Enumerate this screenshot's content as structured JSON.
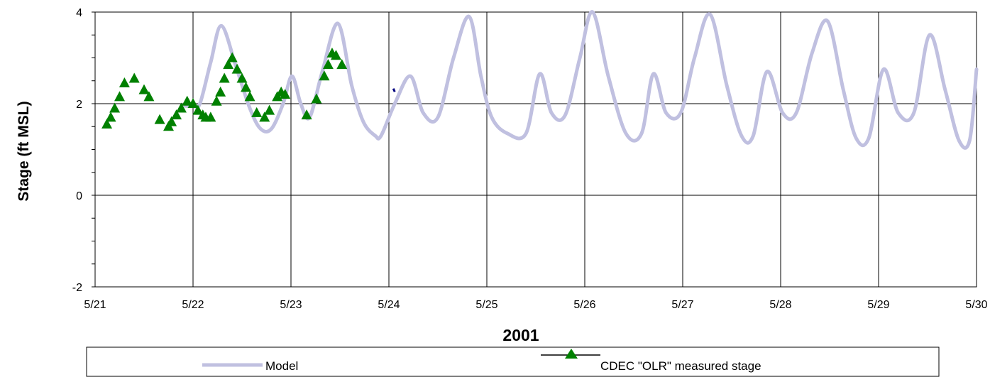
{
  "chart_data": {
    "type": "line",
    "xlabel": "2001",
    "ylabel": "Stage (ft MSL)",
    "xlim": [
      0,
      9
    ],
    "ylim": [
      -2,
      4
    ],
    "x_tick_labels": [
      "5/21",
      "5/22",
      "5/23",
      "5/24",
      "5/25",
      "5/26",
      "5/27",
      "5/28",
      "5/29",
      "5/30"
    ],
    "y_tick_labels": [
      "-2",
      "0",
      "2",
      "4"
    ],
    "y_tick_values": [
      -2,
      0,
      2,
      4
    ],
    "grid": true,
    "legend_placement": "bottom",
    "colors": {
      "model": "#c0c0e0",
      "measured": "#008000",
      "stray": "#000080"
    },
    "x_unit_note": "x values are days after 5/21 00:00",
    "series": [
      {
        "name": "Model",
        "style": "line",
        "x": [
          0.92,
          1.0,
          1.07,
          1.18,
          1.29,
          1.44,
          1.58,
          1.69,
          1.8,
          1.92,
          2.01,
          2.1,
          2.19,
          2.32,
          2.48,
          2.62,
          2.74,
          2.86,
          2.92,
          3.06,
          3.22,
          3.35,
          3.5,
          3.66,
          3.82,
          3.94,
          4.05,
          4.21,
          4.4,
          4.54,
          4.66,
          4.8,
          4.95,
          5.08,
          5.24,
          5.42,
          5.58,
          5.7,
          5.83,
          5.98,
          6.12,
          6.28,
          6.45,
          6.6,
          6.72,
          6.86,
          7.02,
          7.16,
          7.32,
          7.48,
          7.64,
          7.77,
          7.9,
          8.05,
          8.2,
          8.36,
          8.52,
          8.68,
          8.82,
          8.93,
          9.0
        ],
        "y": [
          1.95,
          1.95,
          2.0,
          2.9,
          3.7,
          2.8,
          1.9,
          1.45,
          1.45,
          2.0,
          2.6,
          2.0,
          1.7,
          2.7,
          3.75,
          2.4,
          1.6,
          1.3,
          1.3,
          2.0,
          2.6,
          1.8,
          1.7,
          3.0,
          3.9,
          2.6,
          1.7,
          1.35,
          1.35,
          2.65,
          1.8,
          1.75,
          3.0,
          4.0,
          2.6,
          1.35,
          1.35,
          2.65,
          1.8,
          1.8,
          3.0,
          3.95,
          2.4,
          1.3,
          1.3,
          2.7,
          1.8,
          1.8,
          3.1,
          3.8,
          2.3,
          1.25,
          1.25,
          2.75,
          1.8,
          1.8,
          3.5,
          2.3,
          1.2,
          1.2,
          2.75
        ]
      },
      {
        "name": "CDEC \"OLR\" measured stage",
        "style": "markers",
        "x": [
          0.12,
          0.16,
          0.2,
          0.25,
          0.3,
          0.4,
          0.5,
          0.55,
          0.66,
          0.75,
          0.78,
          0.83,
          0.88,
          0.94,
          1.0,
          1.05,
          1.1,
          1.13,
          1.18,
          1.24,
          1.28,
          1.32,
          1.36,
          1.4,
          1.45,
          1.5,
          1.54,
          1.58,
          1.65,
          1.73,
          1.78,
          1.86,
          1.9,
          1.94,
          2.16,
          2.26,
          2.34,
          2.38,
          2.42,
          2.46,
          2.52
        ],
        "y": [
          1.55,
          1.7,
          1.9,
          2.15,
          2.45,
          2.55,
          2.3,
          2.15,
          1.65,
          1.5,
          1.6,
          1.75,
          1.9,
          2.05,
          2.0,
          1.85,
          1.75,
          1.7,
          1.7,
          2.05,
          2.25,
          2.55,
          2.85,
          3.0,
          2.75,
          2.55,
          2.35,
          2.15,
          1.8,
          1.7,
          1.85,
          2.15,
          2.25,
          2.2,
          1.75,
          2.1,
          2.6,
          2.85,
          3.1,
          3.05,
          2.85
        ]
      }
    ],
    "legend": {
      "model_label": "Model",
      "measured_label": "CDEC \"OLR\" measured stage"
    }
  }
}
